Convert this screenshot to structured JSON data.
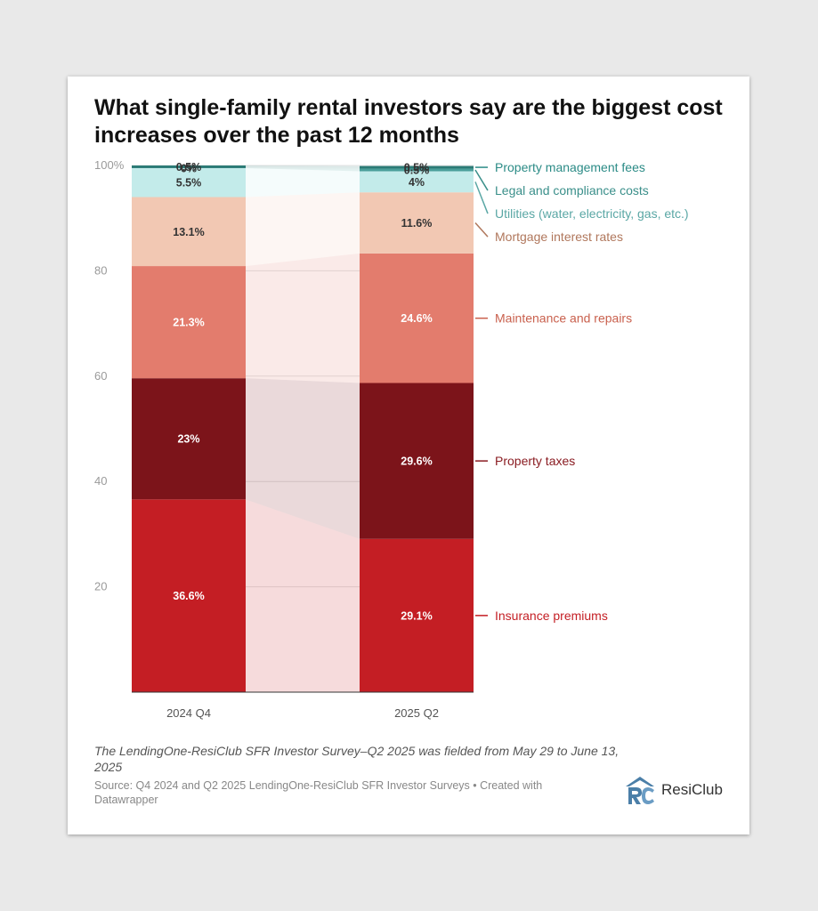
{
  "title": "What single-family rental investors say are the biggest cost increases over the past 12 months",
  "note": "The LendingOne-ResiClub SFR Investor Survey–Q2 2025 was fielded from May 29 to June 13, 2025",
  "source": "Source: Q4 2024 and Q2 2025 LendingOne-ResiClub SFR Investor Surveys • Created with Datawrapper",
  "logo": {
    "text": "ResiClub",
    "icon": "resiclub-logo-icon",
    "color": "#4b7fa8"
  },
  "chart_data": {
    "type": "bar",
    "stacked": true,
    "orientation": "vertical",
    "categories": [
      "2024 Q4",
      "2025 Q2"
    ],
    "ylim": [
      0,
      100
    ],
    "yticks": [
      20,
      40,
      60,
      80,
      100
    ],
    "ytick_labels": [
      "20",
      "40",
      "60",
      "80",
      "100%"
    ],
    "grid": true,
    "legend": "right-side direct labels",
    "series": [
      {
        "name": "Insurance premiums",
        "values": [
          36.6,
          29.1
        ],
        "labels": [
          "36.6%",
          "29.1%"
        ],
        "color": "#c41e24",
        "label_color": "#ffffff",
        "legend_color": "#c41e24"
      },
      {
        "name": "Property taxes",
        "values": [
          23,
          29.6
        ],
        "labels": [
          "23%",
          "29.6%"
        ],
        "color": "#7c141a",
        "label_color": "#ffffff",
        "legend_color": "#8a1c22"
      },
      {
        "name": "Maintenance and repairs",
        "values": [
          21.3,
          24.6
        ],
        "labels": [
          "21.3%",
          "24.6%"
        ],
        "color": "#e37c6d",
        "label_color": "#ffffff",
        "legend_color": "#c9614e"
      },
      {
        "name": "Mortgage interest rates",
        "values": [
          13.1,
          11.6
        ],
        "labels": [
          "13.1%",
          "11.6%"
        ],
        "color": "#f2c8b3",
        "label_color": "#333333",
        "legend_color": "#b0775c"
      },
      {
        "name": "Utilities (water, electricity, gas, etc.)",
        "values": [
          5.5,
          4
        ],
        "labels": [
          "5.5%",
          "4%"
        ],
        "color": "#c3ebea",
        "label_color": "#333333",
        "legend_color": "#5aa7a5"
      },
      {
        "name": "Legal and compliance costs",
        "values": [
          0,
          0.5
        ],
        "labels": [
          "0%",
          "0.5%"
        ],
        "color": "#4a9f9a",
        "label_color": "#333333",
        "legend_color": "#3a8f8a"
      },
      {
        "name": "Property management fees",
        "values": [
          0.5,
          0.5
        ],
        "labels": [
          "0.5%",
          "0.5%"
        ],
        "color": "#2b7b76",
        "label_color": "#333333",
        "legend_color": "#2b8b86"
      }
    ]
  }
}
